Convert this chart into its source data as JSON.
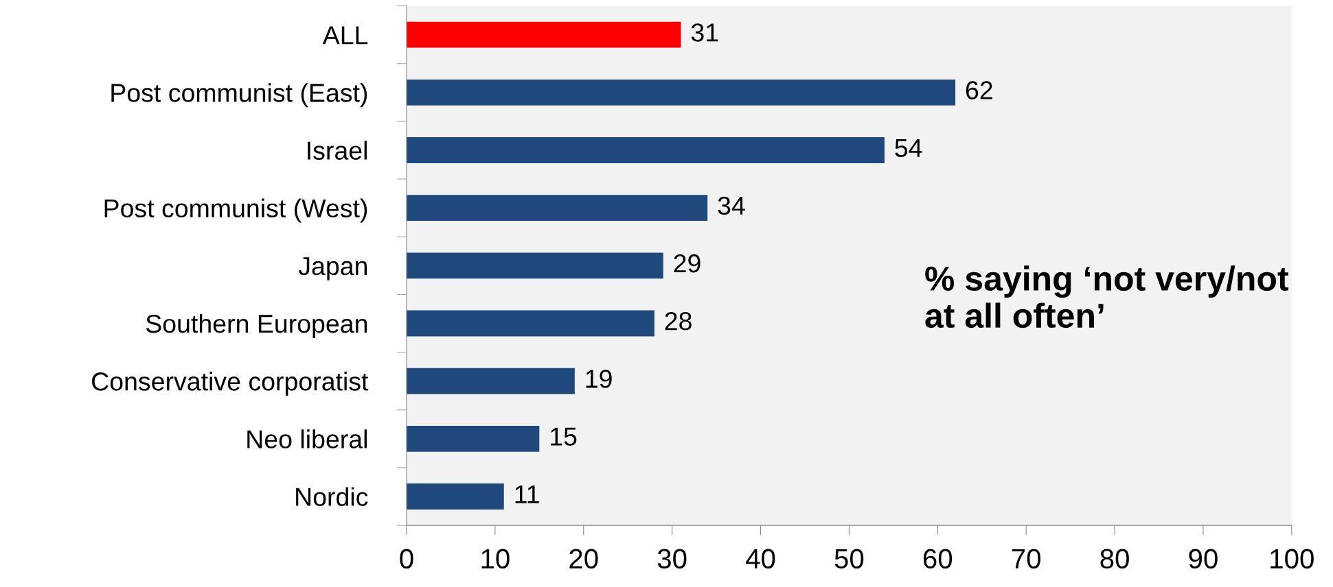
{
  "chart_data": {
    "type": "bar",
    "orientation": "horizontal",
    "categories": [
      "ALL",
      "Post communist (East)",
      "Israel",
      "Post communist (West)",
      "Japan",
      "Southern European",
      "Conservative corporatist",
      "Neo liberal",
      "Nordic"
    ],
    "values": [
      31,
      62,
      54,
      34,
      29,
      28,
      19,
      15,
      11
    ],
    "colors": [
      "#ff0000",
      "#1f497d",
      "#1f497d",
      "#1f497d",
      "#1f497d",
      "#1f497d",
      "#1f497d",
      "#1f497d",
      "#1f497d"
    ],
    "xlim": [
      0,
      100
    ],
    "xticks": [
      0,
      10,
      20,
      30,
      40,
      50,
      60,
      70,
      80,
      90,
      100
    ],
    "data_labels": true,
    "grid": false,
    "legend": false,
    "annotations": [
      "% saying ‘not very/not at all often’"
    ]
  }
}
